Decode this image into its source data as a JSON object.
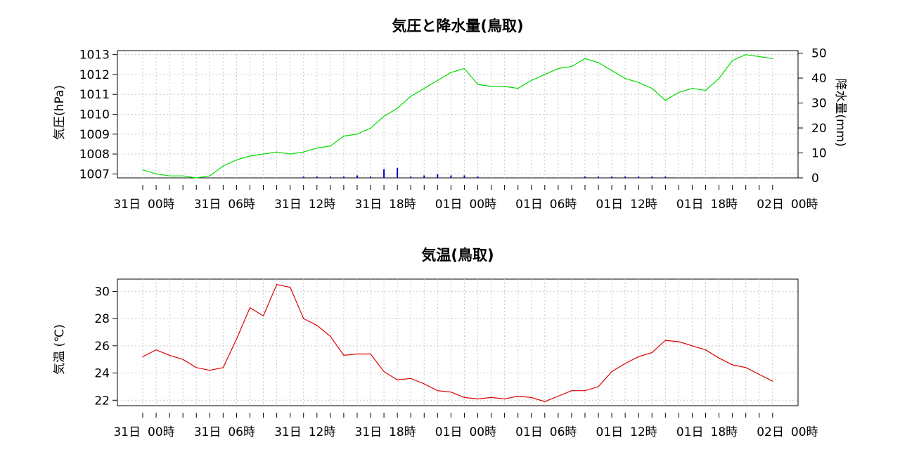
{
  "chart_data": [
    {
      "type": "line",
      "title": "気圧と降水量(鳥取)",
      "ylabel": "気圧(hPa)",
      "y2label": "降水量(mm)",
      "ylim": [
        1006.8,
        1013.2
      ],
      "y2lim": [
        0,
        51
      ],
      "yticks": [
        1007,
        1008,
        1009,
        1010,
        1011,
        1012,
        1013
      ],
      "y2ticks": [
        0,
        10,
        20,
        30,
        40,
        50
      ],
      "xtick_labels": [
        "31日 00時",
        "31日 06時",
        "31日 12時",
        "31日 18時",
        "01日 00時",
        "01日 06時",
        "01日 12時",
        "01日 18時",
        "02日 00時"
      ],
      "grid": true,
      "series": [
        {
          "values": [
            1007.2,
            1007.0,
            1006.9,
            1006.9,
            1006.8,
            1006.9,
            1007.4,
            1007.7,
            1007.9,
            1008.0,
            1008.1,
            1008.0,
            1008.1,
            1008.3,
            1008.4,
            1008.9,
            1009.0,
            1009.3,
            1009.9,
            1010.3,
            1010.9,
            1011.3,
            1011.7,
            1012.1,
            1012.3,
            1011.5,
            1011.4,
            1011.4,
            1011.3,
            1011.7,
            1012.0,
            1012.3,
            1012.4,
            1012.8,
            1012.6,
            1012.2,
            1011.8,
            1011.6,
            1011.3,
            1010.7,
            1011.1,
            1011.3,
            1011.2,
            1011.8,
            1012.7,
            1013.0,
            1012.9,
            1012.8
          ],
          "color": "#00dd00"
        },
        {
          "kind": "precipitation-bars",
          "values": [
            0,
            0,
            0,
            0,
            0,
            0,
            0,
            0,
            0,
            0,
            0,
            0,
            0.3,
            0.3,
            0.3,
            0.3,
            1,
            0.3,
            3.5,
            4,
            0.3,
            1,
            1.5,
            1,
            1,
            0.5,
            0,
            0,
            0,
            0,
            0,
            0,
            0,
            0.5,
            0.5,
            0.3,
            0.3,
            0.3,
            0.5,
            0.3,
            0,
            0,
            0,
            0,
            0,
            0,
            0,
            0
          ],
          "color": "#0000cc"
        }
      ]
    },
    {
      "type": "line",
      "title": "気温(鳥取)",
      "ylabel": "気温 (℃)",
      "ylim": [
        21.6,
        30.9
      ],
      "yticks": [
        22,
        24,
        26,
        28,
        30
      ],
      "xtick_labels": [
        "31日 00時",
        "31日 06時",
        "31日 12時",
        "31日 18時",
        "01日 00時",
        "01日 06時",
        "01日 12時",
        "01日 18時",
        "02日 00時"
      ],
      "grid": true,
      "series": [
        {
          "values": [
            25.2,
            25.7,
            25.3,
            25.0,
            24.4,
            24.2,
            24.4,
            26.5,
            28.8,
            28.2,
            30.5,
            30.3,
            28.0,
            27.5,
            26.7,
            25.3,
            25.4,
            25.4,
            24.1,
            23.5,
            23.6,
            23.2,
            22.7,
            22.6,
            22.2,
            22.1,
            22.2,
            22.1,
            22.3,
            22.2,
            21.9,
            22.3,
            22.7,
            22.7,
            23.0,
            24.1,
            24.7,
            25.2,
            25.5,
            26.4,
            26.3,
            26.0,
            25.7,
            25.1,
            24.6,
            24.4,
            23.9,
            23.4
          ],
          "color": "#dd0000"
        }
      ]
    }
  ]
}
